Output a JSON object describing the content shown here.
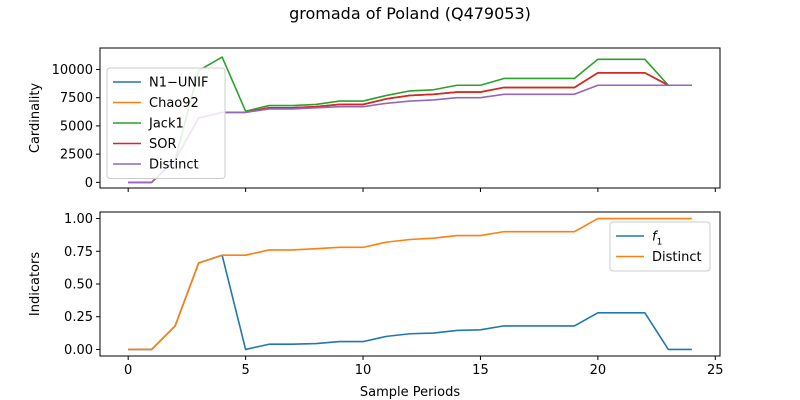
{
  "chart_data": {
    "title": "gromada of Poland (Q479053)",
    "xlabel": "Sample Periods",
    "x": [
      0,
      1,
      2,
      3,
      4,
      5,
      6,
      7,
      8,
      9,
      10,
      11,
      12,
      13,
      14,
      15,
      16,
      17,
      18,
      19,
      20,
      21,
      22,
      23,
      24
    ],
    "xticks": [
      0,
      5,
      10,
      15,
      20,
      25
    ],
    "panels": [
      {
        "type": "line",
        "ylabel": "Cardinality",
        "ylim": [
          -500,
          11900
        ],
        "yticks": [
          0,
          2500,
          5000,
          7500,
          10000
        ],
        "legend_position": "upper-left",
        "series": [
          {
            "name": "N1−UNIF",
            "color": "#1f77b4",
            "values": [
              0,
              0,
              2000,
              5700,
              6200,
              6200,
              6600,
              6600,
              6700,
              6900,
              6900,
              7400,
              7700,
              7800,
              8000,
              8000,
              8400,
              8400,
              8400,
              8400,
              9700,
              9700,
              9700,
              8600,
              8600
            ]
          },
          {
            "name": "Chao92",
            "color": "#ff7f0e",
            "values": [
              0,
              0,
              2000,
              5700,
              6200,
              6200,
              6600,
              6600,
              6700,
              6900,
              6900,
              7400,
              7700,
              7800,
              8000,
              8000,
              8400,
              8400,
              8400,
              8400,
              9700,
              9700,
              9700,
              8600,
              8600
            ]
          },
          {
            "name": "Jack1",
            "color": "#2ca02c",
            "values": [
              0,
              0,
              2000,
              9900,
              11100,
              6300,
              6800,
              6800,
              6900,
              7200,
              7200,
              7700,
              8100,
              8200,
              8600,
              8600,
              9200,
              9200,
              9200,
              9200,
              10900,
              10900,
              10900,
              8600,
              8600
            ]
          },
          {
            "name": "SOR",
            "color": "#d62728",
            "values": [
              0,
              0,
              2000,
              5700,
              6200,
              6200,
              6600,
              6600,
              6700,
              6900,
              6900,
              7400,
              7700,
              7800,
              8000,
              8000,
              8400,
              8400,
              8400,
              8400,
              9700,
              9700,
              9700,
              8600,
              8600
            ]
          },
          {
            "name": "Distinct",
            "color": "#9467bd",
            "values": [
              0,
              0,
              2000,
              5700,
              6200,
              6200,
              6500,
              6500,
              6600,
              6700,
              6700,
              7000,
              7200,
              7300,
              7500,
              7500,
              7800,
              7800,
              7800,
              7800,
              8600,
              8600,
              8600,
              8600,
              8600
            ]
          }
        ]
      },
      {
        "type": "line",
        "ylabel": "Indicators",
        "ylim": [
          -0.05,
          1.05
        ],
        "yticks": [
          0.0,
          0.25,
          0.5,
          0.75,
          1.0
        ],
        "ytick_labels": [
          "0.00",
          "0.25",
          "0.50",
          "0.75",
          "1.00"
        ],
        "legend_position": "upper-right",
        "series": [
          {
            "name": "f",
            "name_subscript": "1",
            "color": "#1f77b4",
            "values": [
              0,
              0,
              0.18,
              0.66,
              0.72,
              0,
              0.04,
              0.04,
              0.045,
              0.06,
              0.06,
              0.1,
              0.12,
              0.125,
              0.145,
              0.15,
              0.18,
              0.18,
              0.18,
              0.18,
              0.28,
              0.28,
              0.28,
              0,
              0
            ]
          },
          {
            "name": "Distinct",
            "color": "#ff7f0e",
            "values": [
              0,
              0,
              0.18,
              0.66,
              0.72,
              0.72,
              0.76,
              0.76,
              0.77,
              0.78,
              0.78,
              0.82,
              0.84,
              0.85,
              0.87,
              0.87,
              0.9,
              0.9,
              0.9,
              0.9,
              1.0,
              1.0,
              1.0,
              1.0,
              1.0
            ]
          }
        ]
      }
    ]
  }
}
